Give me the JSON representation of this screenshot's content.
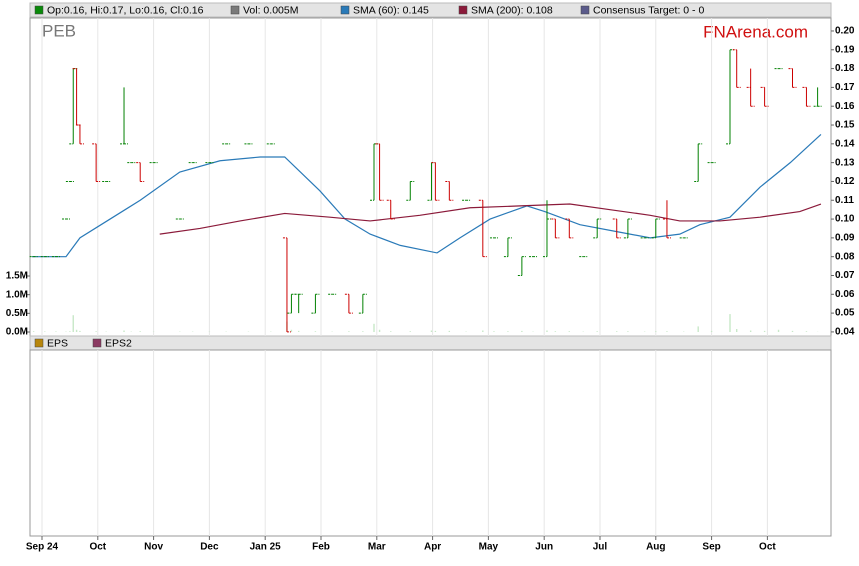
{
  "chart_data": [
    {
      "type": "ohlc",
      "title": "PEB",
      "watermark": "FNArena.com",
      "legend_items": [
        "Op:0.16, Hi:0.17, Lo:0.16, Cl:0.16",
        "Consensus Target: 0 - 0"
      ],
      "legend_colors": [
        "#0a8a0a",
        "#5a5a8a"
      ],
      "up_color": "#008000",
      "down_color": "#cc0000",
      "x": [
        -0.15,
        0.05,
        0.25,
        0.43,
        0.5,
        0.56,
        0.62,
        0.68,
        0.97,
        1.15,
        1.47,
        1.6,
        1.76,
        2.0,
        2.47,
        2.7,
        3.0,
        3.3,
        3.7,
        4.1,
        4.39,
        4.47,
        4.6,
        4.9,
        5.2,
        5.5,
        5.75,
        5.95,
        6.05,
        6.25,
        6.6,
        6.98,
        7.05,
        7.3,
        7.6,
        7.9,
        8.1,
        8.35,
        8.6,
        8.8,
        9.05,
        9.2,
        9.45,
        9.7,
        9.95,
        10.3,
        10.5,
        10.8,
        11.0,
        11.2,
        11.5,
        11.76,
        12.0,
        12.33,
        12.45,
        12.7,
        12.95,
        13.2,
        13.45,
        13.7,
        13.9
      ],
      "open": [
        0.08,
        0.08,
        0.08,
        0.1,
        0.12,
        0.14,
        0.18,
        0.15,
        0.14,
        0.12,
        0.14,
        0.13,
        0.13,
        0.13,
        0.1,
        0.13,
        0.13,
        0.14,
        0.14,
        0.14,
        0.09,
        0.05,
        0.06,
        0.05,
        0.06,
        0.06,
        0.05,
        0.11,
        0.14,
        0.11,
        0.11,
        0.11,
        0.13,
        0.12,
        0.11,
        0.11,
        0.09,
        0.08,
        0.07,
        0.08,
        0.08,
        0.1,
        0.1,
        0.08,
        0.09,
        0.1,
        0.09,
        0.09,
        0.09,
        0.1,
        0.09,
        0.12,
        0.13,
        0.14,
        0.19,
        0.17,
        0.17,
        0.18,
        0.18,
        0.17,
        0.16
      ],
      "high": [
        0.08,
        0.08,
        0.08,
        0.1,
        0.12,
        0.18,
        0.18,
        0.15,
        0.14,
        0.12,
        0.17,
        0.13,
        0.13,
        0.13,
        0.1,
        0.13,
        0.13,
        0.14,
        0.14,
        0.14,
        0.09,
        0.06,
        0.06,
        0.06,
        0.06,
        0.06,
        0.06,
        0.14,
        0.14,
        0.11,
        0.12,
        0.13,
        0.13,
        0.12,
        0.11,
        0.11,
        0.09,
        0.09,
        0.08,
        0.08,
        0.11,
        0.1,
        0.1,
        0.08,
        0.1,
        0.1,
        0.1,
        0.09,
        0.1,
        0.11,
        0.09,
        0.14,
        0.13,
        0.19,
        0.19,
        0.18,
        0.17,
        0.18,
        0.18,
        0.17,
        0.17
      ],
      "low": [
        0.08,
        0.08,
        0.08,
        0.1,
        0.12,
        0.14,
        0.15,
        0.14,
        0.12,
        0.12,
        0.14,
        0.13,
        0.12,
        0.13,
        0.1,
        0.13,
        0.13,
        0.14,
        0.14,
        0.14,
        0.04,
        0.05,
        0.05,
        0.05,
        0.06,
        0.05,
        0.05,
        0.11,
        0.11,
        0.1,
        0.11,
        0.11,
        0.11,
        0.11,
        0.11,
        0.08,
        0.09,
        0.08,
        0.07,
        0.08,
        0.08,
        0.09,
        0.09,
        0.08,
        0.09,
        0.09,
        0.09,
        0.09,
        0.09,
        0.09,
        0.09,
        0.12,
        0.13,
        0.14,
        0.17,
        0.16,
        0.16,
        0.18,
        0.17,
        0.16,
        0.16
      ],
      "close": [
        0.08,
        0.08,
        0.08,
        0.1,
        0.12,
        0.18,
        0.15,
        0.14,
        0.12,
        0.12,
        0.14,
        0.13,
        0.12,
        0.13,
        0.1,
        0.13,
        0.13,
        0.14,
        0.14,
        0.14,
        0.04,
        0.06,
        0.06,
        0.06,
        0.06,
        0.05,
        0.06,
        0.14,
        0.11,
        0.1,
        0.12,
        0.13,
        0.11,
        0.11,
        0.11,
        0.08,
        0.09,
        0.09,
        0.08,
        0.08,
        0.1,
        0.09,
        0.09,
        0.08,
        0.1,
        0.09,
        0.1,
        0.09,
        0.1,
        0.09,
        0.09,
        0.14,
        0.13,
        0.19,
        0.17,
        0.16,
        0.16,
        0.18,
        0.17,
        0.16,
        0.16
      ],
      "series": [
        {
          "name": "SMA (60): 0.145",
          "color": "#2a7ab8",
          "x": [
            -0.18,
            0.43,
            0.68,
            1.22,
            1.76,
            2.47,
            3.19,
            3.91,
            4.35,
            4.98,
            5.43,
            5.88,
            6.42,
            7.08,
            7.49,
            8.03,
            8.69,
            9.01,
            9.64,
            10.36,
            10.9,
            11.43,
            11.79,
            12.33,
            12.87,
            13.41,
            13.96
          ],
          "values": [
            0.08,
            0.08,
            0.09,
            0.1,
            0.11,
            0.125,
            0.131,
            0.133,
            0.133,
            0.115,
            0.1,
            0.092,
            0.086,
            0.082,
            0.09,
            0.1,
            0.107,
            0.104,
            0.097,
            0.093,
            0.09,
            0.092,
            0.097,
            0.101,
            0.117,
            0.13,
            0.145
          ]
        },
        {
          "name": "SMA (200): 0.108",
          "color": "#8b1a3a",
          "x": [
            2.11,
            2.83,
            3.55,
            4.35,
            5.16,
            5.88,
            6.77,
            7.67,
            8.57,
            9.46,
            10.18,
            10.9,
            11.43,
            12.15,
            12.87,
            13.58,
            13.96
          ],
          "values": [
            0.092,
            0.095,
            0.099,
            0.103,
            0.101,
            0.099,
            0.102,
            0.106,
            0.107,
            0.108,
            0.105,
            0.102,
            0.099,
            0.099,
            0.101,
            0.104,
            0.108
          ]
        }
      ],
      "xlim": [
        -0.215,
        14.14
      ],
      "xticks": [
        {
          "value": 0,
          "label": "Sep 24"
        },
        {
          "value": 1,
          "label": "Oct"
        },
        {
          "value": 2,
          "label": "Nov"
        },
        {
          "value": 3,
          "label": "Dec"
        },
        {
          "value": 4,
          "label": "Jan 25"
        },
        {
          "value": 5,
          "label": "Feb"
        },
        {
          "value": 6,
          "label": "Mar"
        },
        {
          "value": 7,
          "label": "Apr"
        },
        {
          "value": 8,
          "label": "May"
        },
        {
          "value": 9,
          "label": "Jun"
        },
        {
          "value": 10,
          "label": "Jul"
        },
        {
          "value": 11,
          "label": "Aug"
        },
        {
          "value": 12,
          "label": "Sep"
        },
        {
          "value": 13,
          "label": "Oct"
        }
      ],
      "ylim": [
        0.0357,
        0.2069
      ],
      "yticks": [
        0.04,
        0.05,
        0.06,
        0.07,
        0.08,
        0.09,
        {
          "value": 0.1,
          "label": "0.10"
        },
        0.11,
        0.12,
        0.13,
        0.14,
        0.15,
        0.16,
        0.17,
        0.18,
        0.19,
        {
          "value": 0.2,
          "label": "0.20"
        }
      ],
      "grid": true
    },
    {
      "type": "bar",
      "name": "Vol: 0.005M",
      "color": "#7a7a7a",
      "bar_color": "#c8e8c8",
      "values": [
        20000,
        15000,
        15000,
        10000,
        20000,
        450000,
        60000,
        30000,
        20000,
        10000,
        40000,
        10000,
        20000,
        10000,
        10000,
        10000,
        10000,
        10000,
        10000,
        10000,
        280000,
        60000,
        30000,
        20000,
        10000,
        20000,
        20000,
        220000,
        60000,
        20000,
        20000,
        40000,
        30000,
        30000,
        10000,
        40000,
        20000,
        20000,
        30000,
        10000,
        40000,
        20000,
        20000,
        10000,
        20000,
        20000,
        20000,
        10000,
        20000,
        20000,
        10000,
        150000,
        30000,
        480000,
        80000,
        40000,
        30000,
        60000,
        30000,
        20000,
        5000
      ],
      "ylim": [
        0,
        1500000
      ],
      "yticks": [
        {
          "value": 0,
          "label": "0.0M"
        },
        {
          "value": 500000,
          "label": "0.5M"
        },
        {
          "value": 1000000,
          "label": "1.0M"
        },
        {
          "value": 1500000,
          "label": "1.5M"
        }
      ]
    },
    {
      "type": "bar",
      "series": [
        {
          "name": "EPS",
          "color": "#b8860b",
          "values": []
        },
        {
          "name": "EPS2",
          "color": "#8b3a62",
          "values": []
        }
      ]
    }
  ]
}
